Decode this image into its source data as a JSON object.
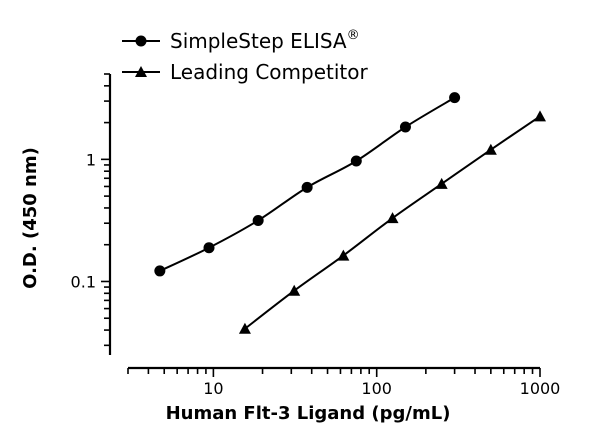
{
  "chart_data": {
    "type": "scatter",
    "title": "",
    "xlabel": "Human Flt-3 Ligand (pg/mL)",
    "ylabel": "O.D. (450 nm)",
    "x_scale": "log",
    "y_scale": "log",
    "xlim": [
      3,
      1000
    ],
    "ylim": [
      0.025,
      5
    ],
    "x_ticks": [
      {
        "value": 10,
        "label": "10"
      },
      {
        "value": 100,
        "label": "100"
      },
      {
        "value": 1000,
        "label": "1000"
      }
    ],
    "y_ticks": [
      {
        "value": 0.1,
        "label": "0.1"
      },
      {
        "value": 1,
        "label": "1"
      }
    ],
    "grid": false,
    "legend_position": "top-left",
    "series": [
      {
        "name": "SimpleStep ELISA",
        "name_superscript": "®",
        "marker": "circle",
        "color": "#000000",
        "x": [
          4.7,
          9.4,
          18.8,
          37.5,
          75,
          150,
          300
        ],
        "y": [
          0.122,
          0.189,
          0.316,
          0.59,
          0.97,
          1.84,
          3.2
        ]
      },
      {
        "name": "Leading Competitor",
        "marker": "triangle",
        "color": "#000000",
        "x": [
          15.6,
          31.25,
          62.5,
          125,
          250,
          500,
          1000
        ],
        "y": [
          0.041,
          0.084,
          0.163,
          0.33,
          0.63,
          1.2,
          2.25
        ]
      }
    ]
  }
}
